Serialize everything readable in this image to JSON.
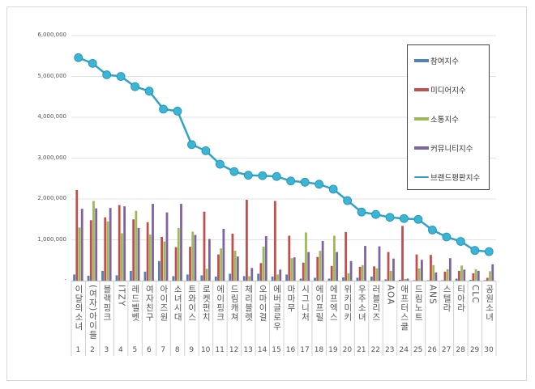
{
  "chart_data": {
    "type": "bar+line",
    "ylim": [
      0,
      6000000
    ],
    "yticks": [
      "-",
      "1,000,000",
      "2,000,000",
      "3,000,000",
      "4,000,000",
      "5,000,000",
      "6,000,000"
    ],
    "grid": true,
    "legend_position": "top-right",
    "ranks": [
      "1",
      "2",
      "3",
      "4",
      "5",
      "6",
      "7",
      "8",
      "9",
      "10",
      "11",
      "12",
      "13",
      "14",
      "15",
      "16",
      "17",
      "18",
      "19",
      "20",
      "21",
      "22",
      "23",
      "24",
      "25",
      "26",
      "27",
      "28",
      "29",
      "30"
    ],
    "categories": [
      "이달의소녀",
      "(여자)아이들",
      "블랙핑크",
      "ITZY",
      "레드벨벳",
      "여자친구",
      "아이즈원",
      "소녀시대",
      "트와이스",
      "로켓펀치",
      "에이핑크",
      "드림캐쳐",
      "체리블렛",
      "오마이걸",
      "에버글로우",
      "마마무",
      "시그니처",
      "에이프릴",
      "에프엑스",
      "위키미키",
      "우주소녀",
      "러블리즈",
      "AOA",
      "애프터스쿨",
      "드림노트",
      "ANS",
      "스텔라",
      "티아라",
      "CLC",
      "공원소녀"
    ],
    "series": [
      {
        "name": "참여지수",
        "type": "bar",
        "color": "#4f81bd",
        "values": [
          150000,
          120000,
          240000,
          130000,
          240000,
          220000,
          480000,
          110000,
          150000,
          130000,
          100000,
          170000,
          110000,
          170000,
          100000,
          150000,
          50000,
          70000,
          50000,
          80000,
          70000,
          100000,
          30000,
          20000,
          10000,
          10000,
          10000,
          50000,
          20000,
          10000
        ]
      },
      {
        "name": "미디어지수",
        "type": "bar",
        "color": "#c0504d",
        "values": [
          2220000,
          1480000,
          1550000,
          1850000,
          1500000,
          1430000,
          1070000,
          820000,
          830000,
          1690000,
          640000,
          1150000,
          1980000,
          430000,
          1950000,
          1100000,
          440000,
          580000,
          360000,
          1190000,
          340000,
          350000,
          700000,
          1340000,
          640000,
          630000,
          220000,
          240000,
          180000,
          70000
        ]
      },
      {
        "name": "소통지수",
        "type": "bar",
        "color": "#9bbb59",
        "values": [
          1300000,
          1950000,
          1450000,
          1160000,
          1710000,
          1130000,
          960000,
          1290000,
          1200000,
          290000,
          790000,
          730000,
          110000,
          830000,
          150000,
          550000,
          1180000,
          730000,
          1100000,
          180000,
          380000,
          300000,
          240000,
          40000,
          300000,
          380000,
          280000,
          370000,
          280000,
          230000
        ]
      },
      {
        "name": "커뮤니티지수",
        "type": "bar",
        "color": "#8064a2",
        "values": [
          1760000,
          1770000,
          1780000,
          1820000,
          1290000,
          1880000,
          1670000,
          1880000,
          1120000,
          1020000,
          1270000,
          590000,
          310000,
          1090000,
          270000,
          570000,
          700000,
          970000,
          700000,
          480000,
          850000,
          840000,
          540000,
          50000,
          510000,
          200000,
          550000,
          270000,
          240000,
          400000
        ]
      },
      {
        "name": "브랜드평판지수",
        "type": "line",
        "color": "#31a3c6",
        "values": [
          5460000,
          5320000,
          5040000,
          5000000,
          4750000,
          4640000,
          4200000,
          4150000,
          3330000,
          3180000,
          2850000,
          2670000,
          2580000,
          2570000,
          2550000,
          2440000,
          2410000,
          2360000,
          2240000,
          1960000,
          1680000,
          1620000,
          1550000,
          1520000,
          1500000,
          1240000,
          1070000,
          960000,
          740000,
          710000
        ]
      }
    ]
  }
}
